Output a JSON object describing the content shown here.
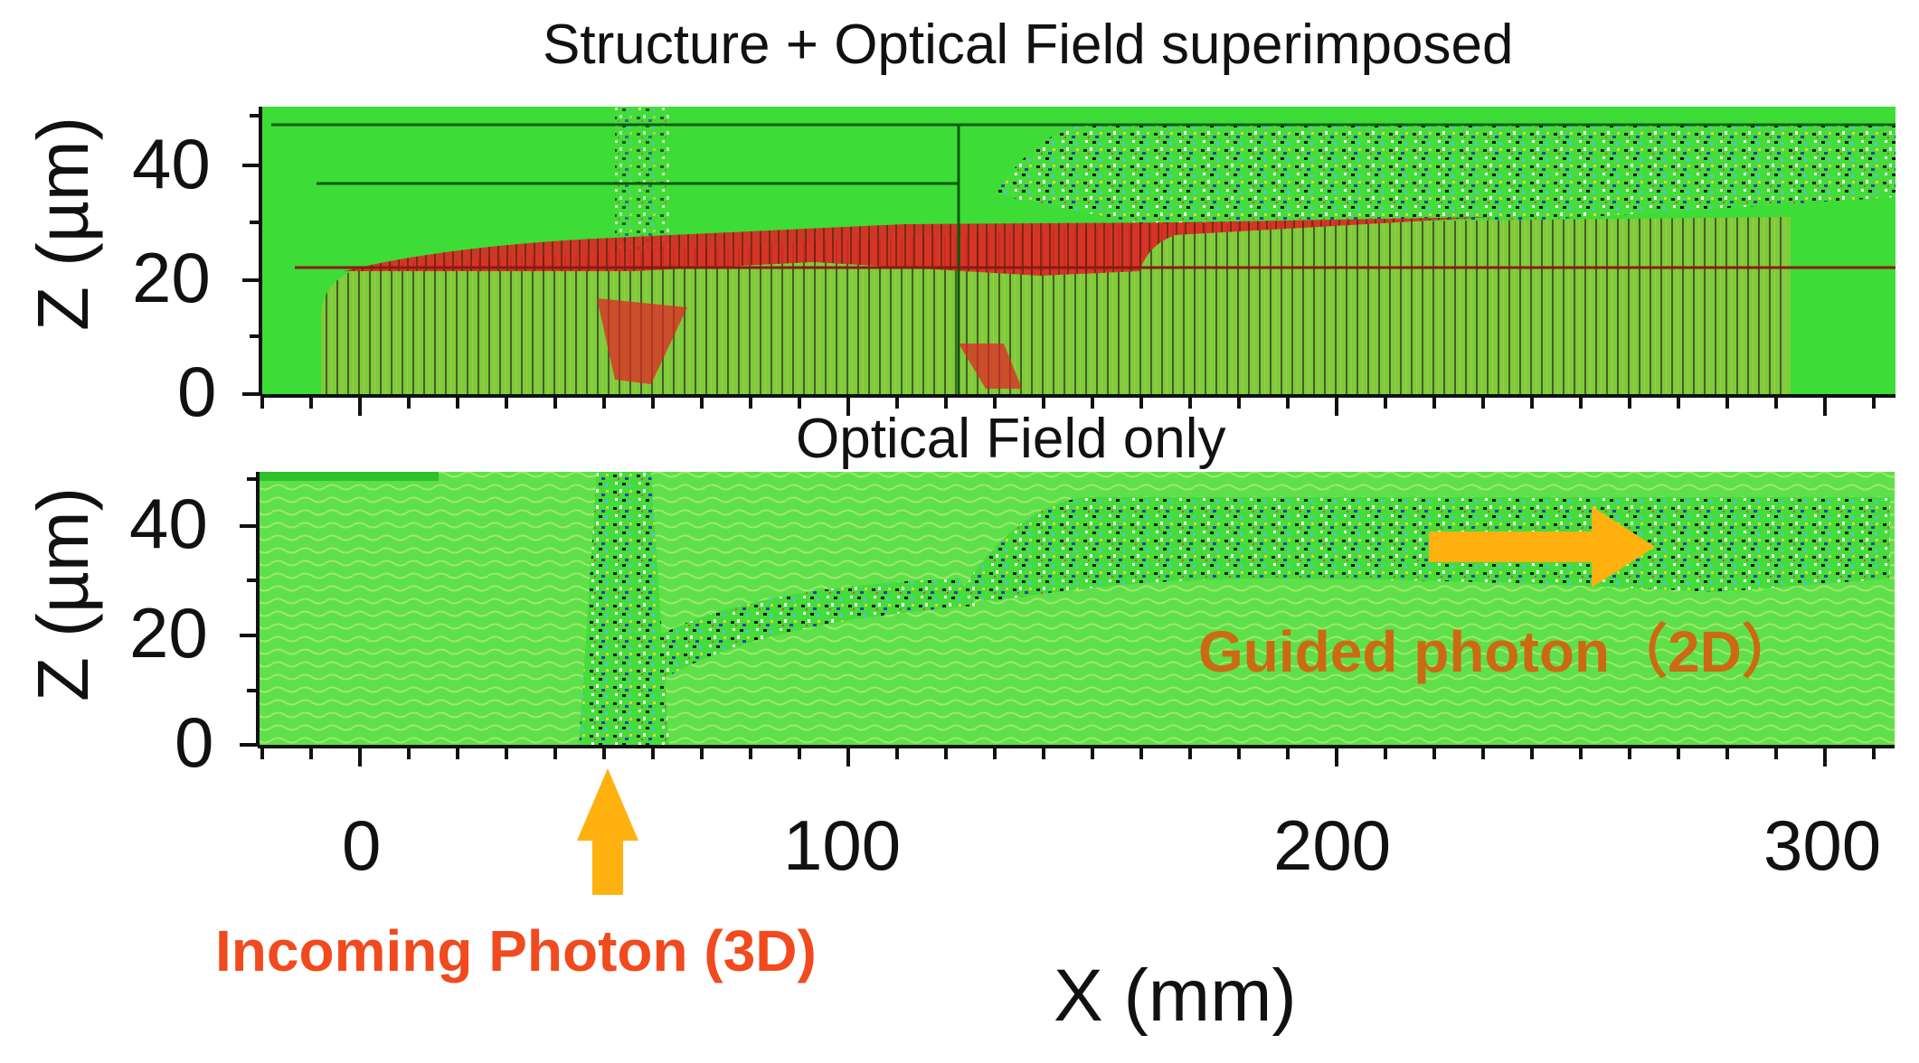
{
  "figure": {
    "top_title": "Structure + Optical Field superimposed",
    "bottom_title": "Optical Field only",
    "y_axis_label": "Z (µm)",
    "x_axis_label": "X (mm)",
    "y_ticks": [
      "0",
      "20",
      "40"
    ],
    "x_ticks": [
      "0",
      "100",
      "200",
      "300"
    ],
    "incoming_label": "Incoming Photon (3D)",
    "guided_label": "Guided photon（2D）",
    "colors": {
      "background_field": "#33dd33",
      "structure_red": "#e02424",
      "arrow_orange": "#ffb10f",
      "incoming_text": "#f04a1e",
      "guided_text": "#cc6a14"
    }
  }
}
